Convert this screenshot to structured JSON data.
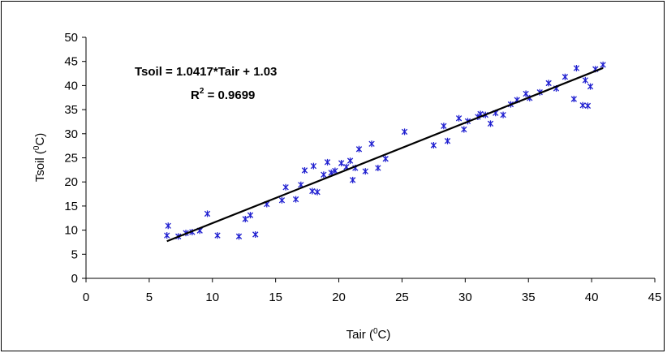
{
  "chart_data": {
    "type": "scatter",
    "xlabel": {
      "main": "Tair (",
      "sup": "0",
      "end": "C)"
    },
    "ylabel": {
      "main": "Tsoil (",
      "sup": "0",
      "end": "C)"
    },
    "xlim": [
      0,
      45
    ],
    "ylim": [
      0,
      50
    ],
    "xticks": [
      0,
      5,
      10,
      15,
      20,
      25,
      30,
      35,
      40,
      45
    ],
    "yticks": [
      0,
      5,
      10,
      15,
      20,
      25,
      30,
      35,
      40,
      45,
      50
    ],
    "grid": false,
    "marker_color": "#1f1fd0",
    "line_color": "#000000",
    "annotations": {
      "equation": "Tsoil = 1.0417*Tair + 1.03",
      "r2_prefix": "R",
      "r2_sup": "2",
      "r2_value": " = 0.9699"
    },
    "trendline": {
      "slope": 1.0417,
      "intercept": 1.03,
      "x_range": [
        6.4,
        40.9
      ]
    },
    "x": [
      6.4,
      6.5,
      7.3,
      7.9,
      8.4,
      9.0,
      9.6,
      10.4,
      12.1,
      12.6,
      13.0,
      13.4,
      14.3,
      15.5,
      15.8,
      16.6,
      17.0,
      17.3,
      17.9,
      18.0,
      18.3,
      18.8,
      19.1,
      19.4,
      19.7,
      20.2,
      20.6,
      20.9,
      21.1,
      21.3,
      21.6,
      22.1,
      22.6,
      23.1,
      23.7,
      25.2,
      27.5,
      28.3,
      28.6,
      29.5,
      29.9,
      30.2,
      31.0,
      31.2,
      31.6,
      32.0,
      32.4,
      33.0,
      33.6,
      34.1,
      34.8,
      35.1,
      35.9,
      36.6,
      37.2,
      37.9,
      38.6,
      38.8,
      39.3,
      39.5,
      39.7,
      39.9,
      40.3,
      40.9
    ],
    "y": [
      8.9,
      10.9,
      8.7,
      9.4,
      9.6,
      9.9,
      13.4,
      8.9,
      8.7,
      12.3,
      13.1,
      9.1,
      15.4,
      16.2,
      18.9,
      16.4,
      19.4,
      22.4,
      18.1,
      23.3,
      17.9,
      21.5,
      24.1,
      21.9,
      22.3,
      23.9,
      23.1,
      24.4,
      20.4,
      22.9,
      26.8,
      22.2,
      27.9,
      22.9,
      24.8,
      30.4,
      27.6,
      31.6,
      28.5,
      33.2,
      30.9,
      32.6,
      33.5,
      34.1,
      33.9,
      32.1,
      34.3,
      33.9,
      36.1,
      37.0,
      38.3,
      37.4,
      38.6,
      40.5,
      39.4,
      41.8,
      37.2,
      43.6,
      35.9,
      41.1,
      35.8,
      39.8,
      43.4,
      44.3
    ]
  }
}
